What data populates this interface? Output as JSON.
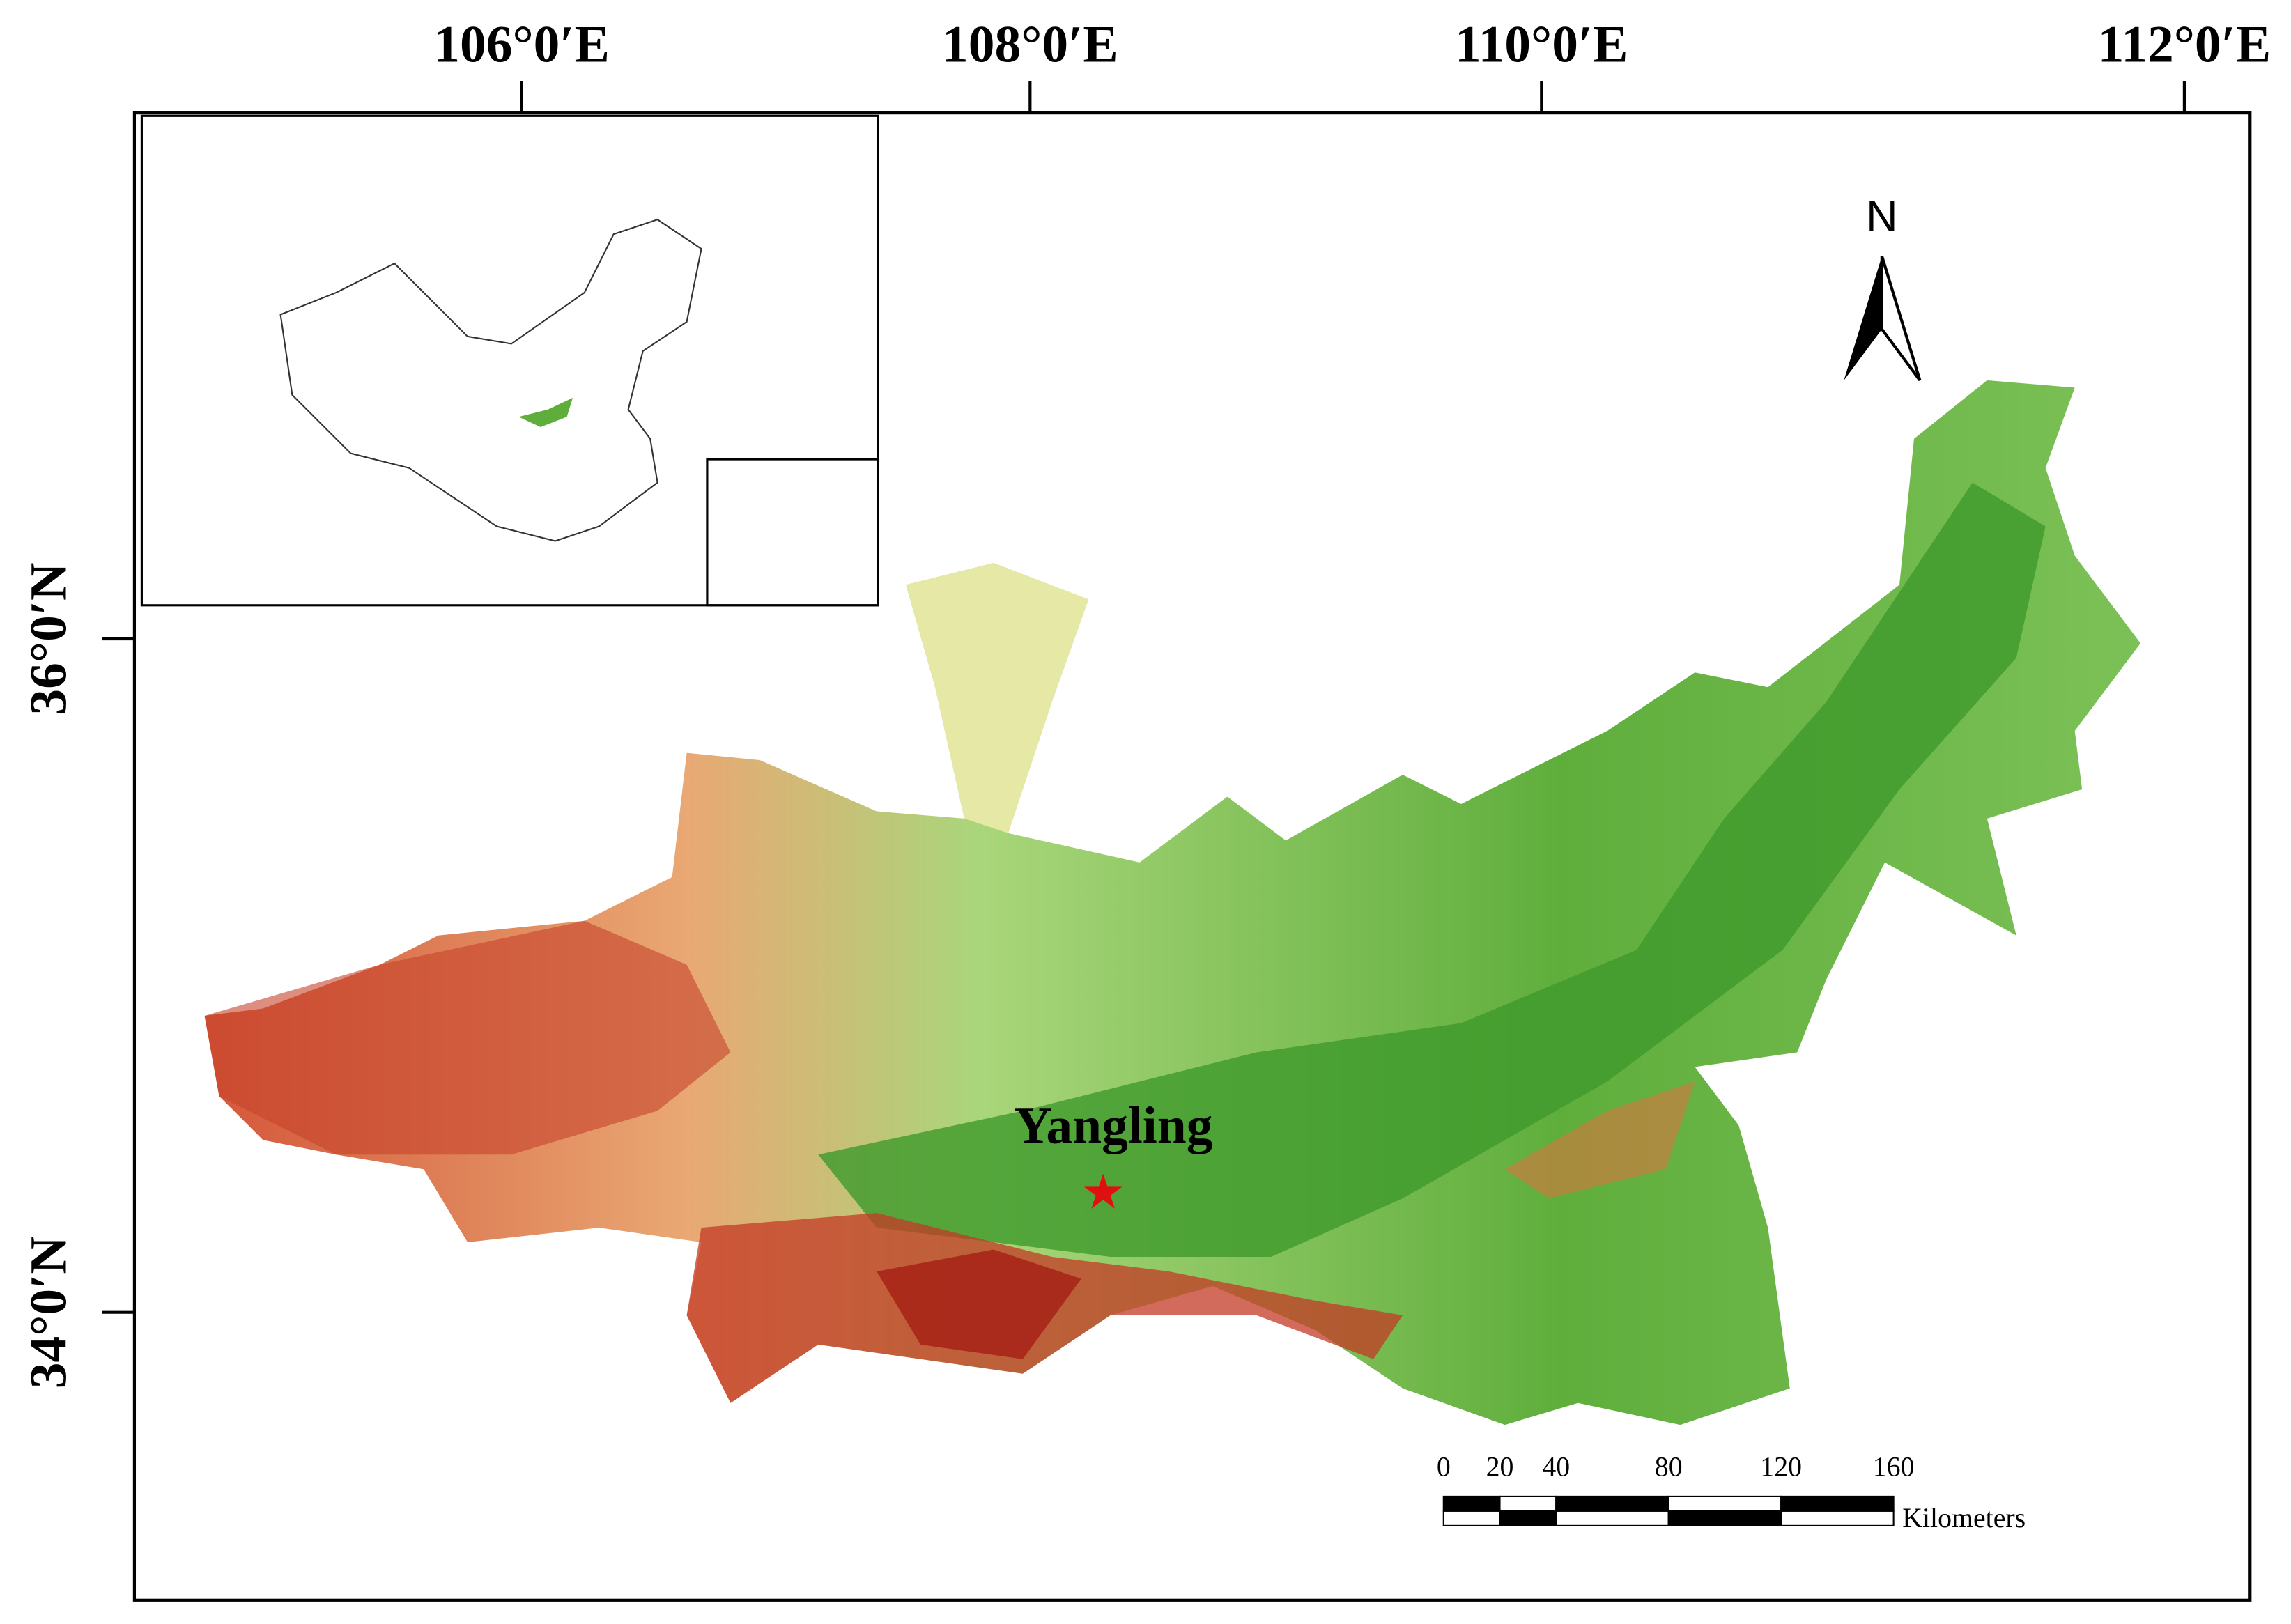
{
  "map": {
    "lon_labels": [
      "106°0′E",
      "108°0′E",
      "110°0′E",
      "112°0′E"
    ],
    "lat_labels": [
      "36°0′N",
      "34°0′N"
    ],
    "north": "N",
    "site": "Yangling",
    "scale_bar": {
      "ticks": [
        0,
        20,
        40,
        80,
        120,
        160
      ],
      "unit": "Kilometers"
    }
  }
}
